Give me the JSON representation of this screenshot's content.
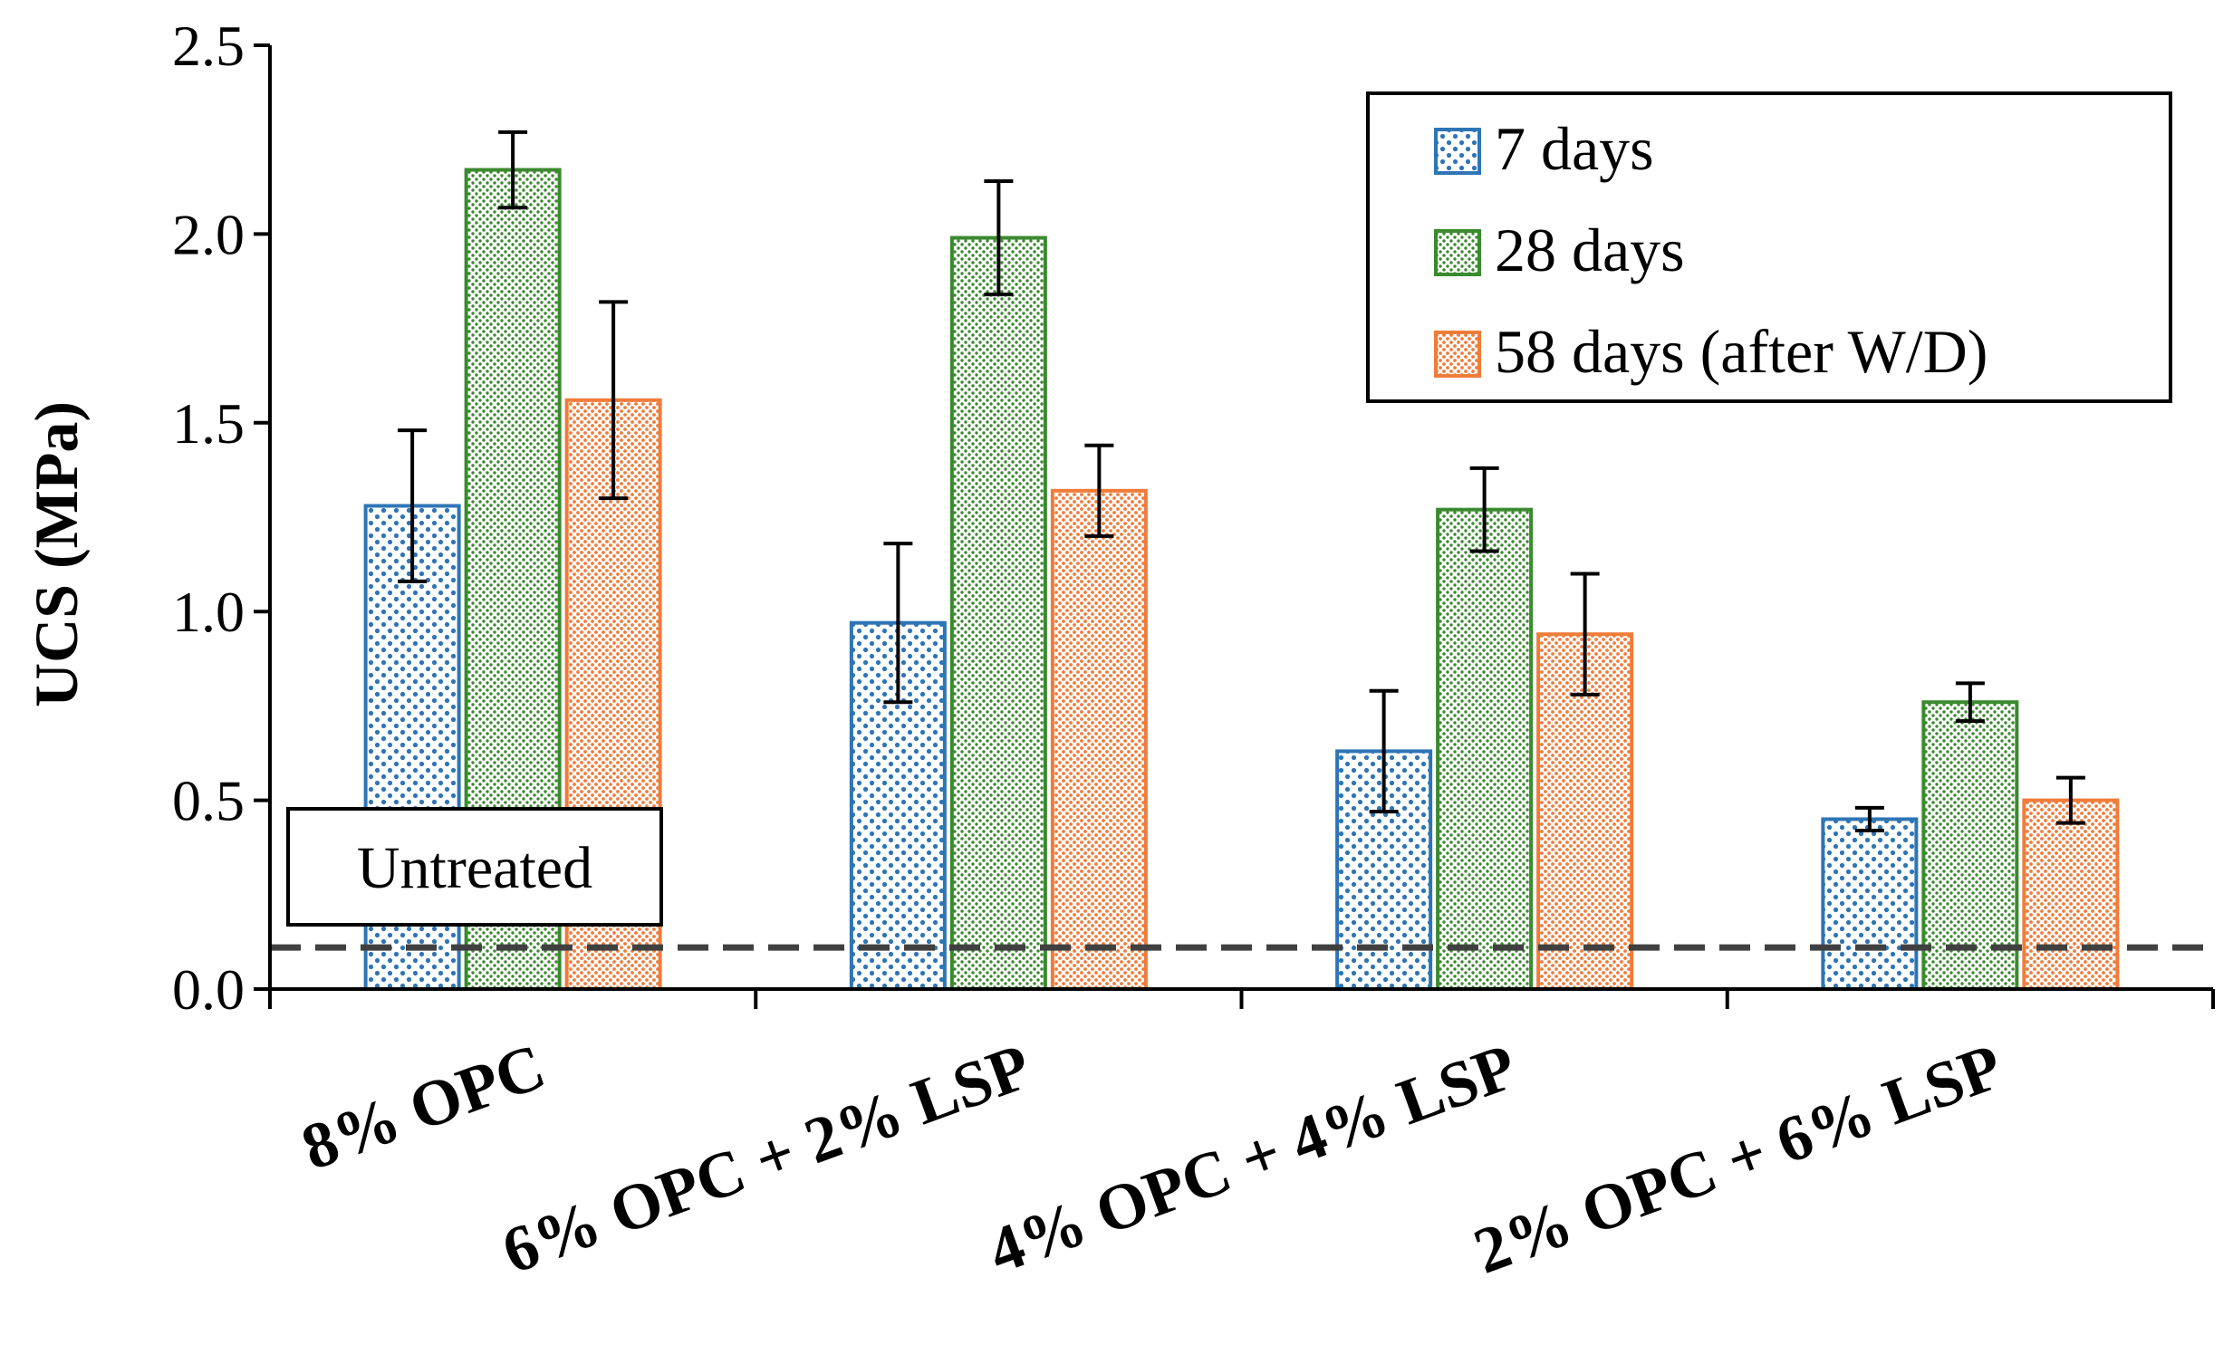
{
  "chart_data": {
    "type": "bar",
    "title": "",
    "xlabel": "",
    "ylabel": "UCS (MPa)",
    "ylim": [
      0,
      2.5
    ],
    "yticks": [
      "0.0",
      "0.5",
      "1.0",
      "1.5",
      "2.0",
      "2.5"
    ],
    "ytick_values": [
      0,
      0.5,
      1.0,
      1.5,
      2.0,
      2.5
    ],
    "grid": false,
    "legend_position": "top-right",
    "categories": [
      "8% OPC",
      "6% OPC + 2% LSP",
      "4% OPC + 4% LSP",
      "2% OPC + 6% LSP"
    ],
    "series": [
      {
        "name": "7 days",
        "color": "#2e75b6",
        "values": [
          1.28,
          0.97,
          0.63,
          0.45
        ],
        "errors": [
          0.2,
          0.21,
          0.16,
          0.03
        ]
      },
      {
        "name": "28 days",
        "color": "#3a8a2e",
        "values": [
          2.17,
          1.99,
          1.27,
          0.76
        ],
        "errors": [
          0.1,
          0.15,
          0.11,
          0.05
        ]
      },
      {
        "name": "58 days (after W/D)",
        "color": "#f07c3a",
        "values": [
          1.56,
          1.32,
          0.94,
          0.5
        ],
        "errors": [
          0.26,
          0.12,
          0.16,
          0.06
        ]
      }
    ],
    "reference_line": {
      "label": "Untreated",
      "value": 0.11,
      "color": "#404040"
    }
  }
}
